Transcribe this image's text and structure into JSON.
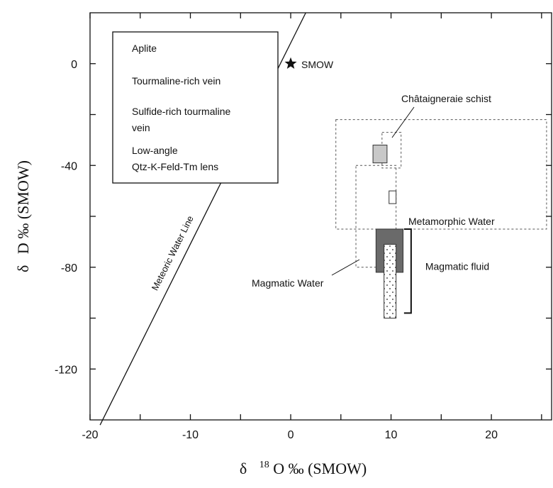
{
  "chart_data": {
    "type": "scatter",
    "xlabel": {
      "prefix": "δ",
      "sup": "18",
      "main": "O ‰ (SMOW)"
    },
    "ylabel": {
      "prefix": "δ",
      "main": "D ‰ (SMOW)"
    },
    "xlim": [
      -20,
      26
    ],
    "ylim": [
      -140,
      20
    ],
    "x_ticks": [
      -20,
      -10,
      0,
      10,
      20
    ],
    "x_tick_labels": [
      "-20",
      "-10",
      "0",
      "10",
      "20"
    ],
    "y_ticks": [
      0,
      -40,
      -80,
      -120
    ],
    "y_tick_labels": [
      "0",
      "-40",
      "-80",
      "-120"
    ],
    "minor_x_ticks": [
      -15,
      -5,
      5,
      15,
      25
    ],
    "minor_y_ticks": [
      -20,
      -60,
      -100
    ],
    "grid": false,
    "legend_position": "top-left",
    "legend": [
      {
        "label": "Aplite"
      },
      {
        "label": "Tourmaline-rich vein"
      },
      {
        "label_lines": [
          "Sulfide-rich tourmaline",
          "vein"
        ]
      },
      {
        "label_lines": [
          "Low-angle",
          "Qtz-K-Feld-Tm lens"
        ]
      }
    ],
    "meteoric_water_line": {
      "label": "Meteoric Water Line",
      "x": [
        -19,
        1.5
      ],
      "y": [
        -142,
        20
      ]
    },
    "smow": {
      "label": "SMOW",
      "x": 0,
      "y": 0
    },
    "fields": [
      {
        "name": "metamorphic_water",
        "label": "Metamorphic Water",
        "x": [
          4.5,
          25.5
        ],
        "y": [
          -65,
          -22
        ]
      },
      {
        "name": "magmatic_water",
        "label": "Magmatic Water",
        "x": [
          6.5,
          10.5
        ],
        "y": [
          -80,
          -40
        ]
      },
      {
        "name": "chataigneraie_schist",
        "label": "Châtaigneraie schist",
        "x": [
          9.1,
          11
        ],
        "y": [
          -27,
          -41
        ]
      }
    ],
    "samples": [
      {
        "name": "aplite",
        "x": [
          8.2,
          9.6
        ],
        "y": [
          -32,
          -39
        ],
        "color": "#c8c8c8"
      },
      {
        "name": "tourmaline_rich_vein",
        "x": [
          9.8,
          10.5
        ],
        "y": [
          -50,
          -55
        ],
        "color": "#ffffff"
      },
      {
        "name": "sulfide_rich_tourmaline_vein",
        "x": [
          8.5,
          11.2
        ],
        "y": [
          -65,
          -82
        ],
        "color": "#6a6a6a"
      },
      {
        "name": "low_angle_qtz_k_feld_tm_lens",
        "x": [
          9.3,
          10.5
        ],
        "y": [
          -71,
          -100
        ],
        "color": "#ffffff"
      }
    ],
    "magmatic_fluid": {
      "label": "Magmatic fluid",
      "x": 12,
      "y": [
        -65,
        -98
      ]
    }
  }
}
